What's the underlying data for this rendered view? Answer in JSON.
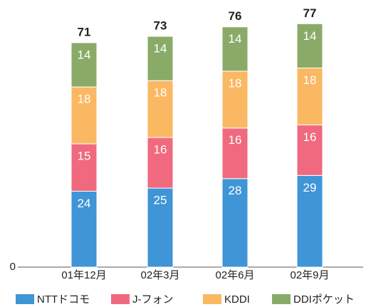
{
  "chart_data": {
    "type": "stacked-bar",
    "categories": [
      "01年12月",
      "02年3月",
      "02年6月",
      "02年9月"
    ],
    "series": [
      {
        "name": "NTTドコモ",
        "color": "#3f95d6",
        "values": [
          24,
          25,
          28,
          29
        ]
      },
      {
        "name": "J-フォン",
        "color": "#f0697e",
        "values": [
          15,
          16,
          16,
          16
        ]
      },
      {
        "name": "KDDI",
        "color": "#fbb862",
        "values": [
          18,
          18,
          18,
          18
        ]
      },
      {
        "name": "DDIポケット",
        "color": "#8aab68",
        "values": [
          14,
          14,
          14,
          14
        ]
      }
    ],
    "totals": [
      71,
      73,
      76,
      77
    ],
    "ylim": [
      0,
      80
    ],
    "yticks": [
      0
    ],
    "grid": false
  }
}
